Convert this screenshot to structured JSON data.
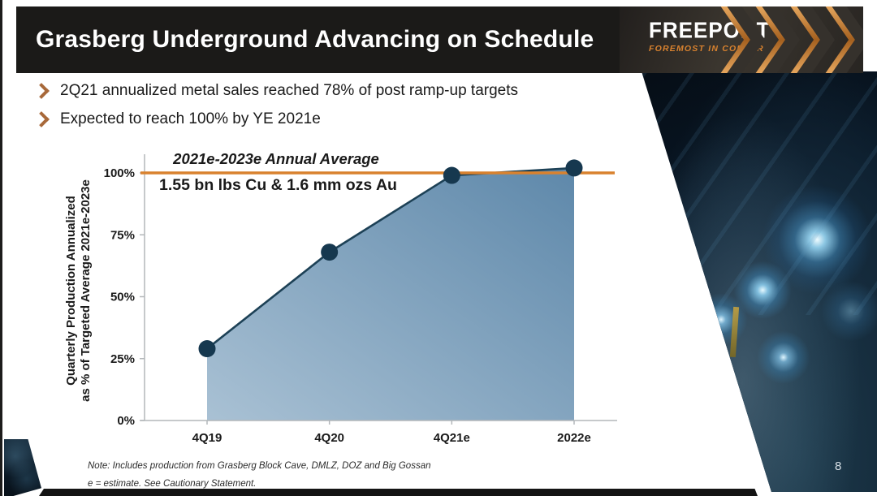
{
  "header": {
    "title": "Grasberg Underground Advancing on Schedule",
    "logo": {
      "name": "FREEPORT",
      "tagline": "FOREMOST IN COPPER"
    }
  },
  "bullets": [
    "2Q21 annualized metal sales reached 78% of post ramp-up targets",
    "Expected to reach 100% by YE 2021e"
  ],
  "chart_data": {
    "type": "area",
    "title": "",
    "categories": [
      "4Q19",
      "4Q20",
      "4Q21e",
      "2022e"
    ],
    "values": [
      29,
      68,
      99,
      102
    ],
    "series_name": "Quarterly production annualized as % of targeted average",
    "ylabel_line1": "Quarterly Production Annualized",
    "ylabel_line2": "as % of Targeted Average 2021e-2023e",
    "xlabel": "",
    "yticks": [
      0,
      25,
      50,
      75,
      100
    ],
    "ytick_suffix": "%",
    "ylim": [
      0,
      107
    ],
    "grid": false,
    "legend": "none",
    "target_line": {
      "value": 100,
      "title": "2021e-2023e Annual Average",
      "value_text": "1.55 bn lbs Cu & 1.6 mm ozs Au",
      "color": "#d9822f"
    },
    "colors": {
      "area_light": "#a9c1d4",
      "area_dark": "#5e88aa",
      "line": "#1d4156",
      "marker": "#16384f",
      "axis": "#b3b7ba"
    }
  },
  "footnote": {
    "line1": "Note: Includes production from Grasberg Block Cave, DMLZ, DOZ and Big Gossan",
    "line2": "e = estimate. See Cautionary Statement."
  },
  "page_number": "8",
  "colors": {
    "accent": "#d9822f",
    "bullet_arrow": "#a8693a",
    "header_bg": "#1b1a18",
    "footer_bg": "#141414",
    "text": "#1a1a1a"
  }
}
